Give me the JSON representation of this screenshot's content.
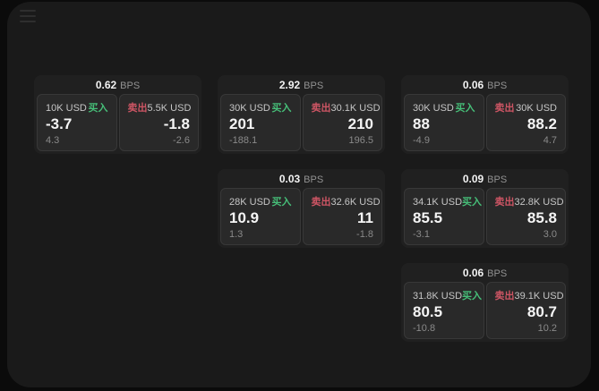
{
  "labels": {
    "unit": "BPS",
    "buy": "买入",
    "sell": "卖出"
  },
  "colors": {
    "buy_accent": "#46be78",
    "sell_accent": "#cd5564",
    "surface_background": "#1a1a1a",
    "card_background": "#202020",
    "panel_background": "#292929",
    "primary_text": "#f5f5f5",
    "muted_text": "#8a8a8a"
  },
  "cards": [
    {
      "bps": "0.62",
      "buy": {
        "amount": "10K USD",
        "value": "-3.7",
        "change": "4.3"
      },
      "sell": {
        "amount": "5.5K USD",
        "value": "-1.8",
        "change": "-2.6"
      }
    },
    {
      "bps": "2.92",
      "buy": {
        "amount": "30K USD",
        "value": "201",
        "change": "-188.1"
      },
      "sell": {
        "amount": "30.1K USD",
        "value": "210",
        "change": "196.5"
      }
    },
    {
      "bps": "0.06",
      "buy": {
        "amount": "30K USD",
        "value": "88",
        "change": "-4.9"
      },
      "sell": {
        "amount": "30K USD",
        "value": "88.2",
        "change": "4.7"
      }
    },
    {
      "bps": "0.03",
      "buy": {
        "amount": "28K USD",
        "value": "10.9",
        "change": "1.3"
      },
      "sell": {
        "amount": "32.6K USD",
        "value": "11",
        "change": "-1.8"
      }
    },
    {
      "bps": "0.09",
      "buy": {
        "amount": "34.1K USD",
        "value": "85.5",
        "change": "-3.1"
      },
      "sell": {
        "amount": "32.8K USD",
        "value": "85.8",
        "change": "3.0"
      }
    },
    {
      "bps": "0.06",
      "buy": {
        "amount": "31.8K USD",
        "value": "80.5",
        "change": "-10.8"
      },
      "sell": {
        "amount": "39.1K USD",
        "value": "80.7",
        "change": "10.2"
      }
    }
  ]
}
